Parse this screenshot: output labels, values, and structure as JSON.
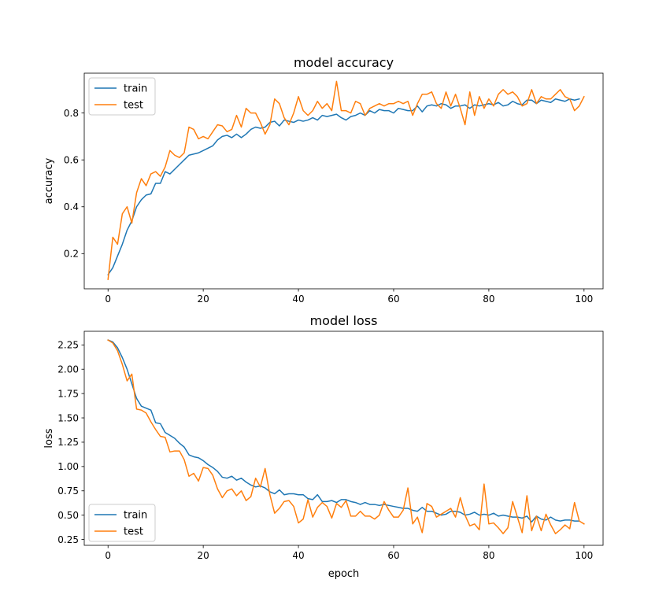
{
  "colors": {
    "train": "#1f77b4",
    "test": "#ff7f0e"
  },
  "chart_data": [
    {
      "type": "line",
      "title": "model accuracy",
      "xlabel": "",
      "ylabel": "accuracy",
      "xlim": [
        -5,
        104
      ],
      "ylim": [
        0.05,
        0.97
      ],
      "xticks": [
        0,
        20,
        40,
        60,
        80,
        100
      ],
      "yticks": [
        0.2,
        0.4,
        0.6,
        0.8
      ],
      "ytick_labels": [
        "0.2",
        "0.4",
        "0.6",
        "0.8"
      ],
      "legend_position": "top-left",
      "grid": false,
      "series": [
        {
          "name": "train",
          "values": [
            0.11,
            0.14,
            0.19,
            0.24,
            0.3,
            0.34,
            0.4,
            0.43,
            0.45,
            0.455,
            0.5,
            0.5,
            0.55,
            0.54,
            0.56,
            0.58,
            0.6,
            0.62,
            0.625,
            0.63,
            0.64,
            0.65,
            0.66,
            0.685,
            0.7,
            0.705,
            0.695,
            0.71,
            0.695,
            0.71,
            0.73,
            0.74,
            0.735,
            0.74,
            0.76,
            0.765,
            0.745,
            0.77,
            0.765,
            0.76,
            0.77,
            0.765,
            0.77,
            0.78,
            0.77,
            0.79,
            0.785,
            0.79,
            0.795,
            0.78,
            0.77,
            0.785,
            0.79,
            0.8,
            0.79,
            0.81,
            0.8,
            0.815,
            0.81,
            0.81,
            0.8,
            0.82,
            0.815,
            0.81,
            0.81,
            0.83,
            0.805,
            0.83,
            0.835,
            0.83,
            0.84,
            0.835,
            0.82,
            0.83,
            0.83,
            0.835,
            0.82,
            0.835,
            0.83,
            0.835,
            0.84,
            0.835,
            0.845,
            0.83,
            0.835,
            0.85,
            0.84,
            0.835,
            0.855,
            0.855,
            0.84,
            0.855,
            0.85,
            0.845,
            0.86,
            0.855,
            0.85,
            0.86,
            0.855,
            0.86
          ]
        },
        {
          "name": "test",
          "values": [
            0.09,
            0.27,
            0.24,
            0.37,
            0.4,
            0.33,
            0.46,
            0.52,
            0.49,
            0.54,
            0.55,
            0.53,
            0.57,
            0.64,
            0.62,
            0.61,
            0.63,
            0.74,
            0.73,
            0.69,
            0.7,
            0.69,
            0.72,
            0.75,
            0.745,
            0.72,
            0.73,
            0.79,
            0.74,
            0.82,
            0.8,
            0.8,
            0.76,
            0.71,
            0.75,
            0.86,
            0.84,
            0.78,
            0.75,
            0.8,
            0.87,
            0.81,
            0.79,
            0.81,
            0.85,
            0.82,
            0.84,
            0.81,
            0.935,
            0.81,
            0.81,
            0.8,
            0.85,
            0.84,
            0.79,
            0.82,
            0.83,
            0.84,
            0.83,
            0.84,
            0.84,
            0.85,
            0.84,
            0.85,
            0.79,
            0.84,
            0.88,
            0.88,
            0.89,
            0.84,
            0.82,
            0.89,
            0.83,
            0.88,
            0.82,
            0.75,
            0.89,
            0.79,
            0.87,
            0.82,
            0.86,
            0.83,
            0.88,
            0.9,
            0.88,
            0.89,
            0.87,
            0.83,
            0.84,
            0.9,
            0.84,
            0.87,
            0.86,
            0.86,
            0.88,
            0.9,
            0.87,
            0.86,
            0.81,
            0.83,
            0.87
          ]
        }
      ]
    },
    {
      "type": "line",
      "title": "model loss",
      "xlabel": "epoch",
      "ylabel": "loss",
      "xlim": [
        -5,
        104
      ],
      "ylim": [
        0.19,
        2.39
      ],
      "xticks": [
        0,
        20,
        40,
        60,
        80,
        100
      ],
      "yticks": [
        0.25,
        0.5,
        0.75,
        1.0,
        1.25,
        1.5,
        1.75,
        2.0,
        2.25
      ],
      "ytick_labels": [
        "0.25",
        "0.50",
        "0.75",
        "1.00",
        "1.25",
        "1.50",
        "1.75",
        "2.00",
        "2.25"
      ],
      "legend_position": "bottom-left",
      "grid": false,
      "series": [
        {
          "name": "train",
          "values": [
            2.3,
            2.28,
            2.22,
            2.12,
            2.0,
            1.85,
            1.7,
            1.62,
            1.6,
            1.58,
            1.45,
            1.44,
            1.35,
            1.32,
            1.29,
            1.24,
            1.2,
            1.12,
            1.1,
            1.09,
            1.06,
            1.02,
            0.99,
            0.95,
            0.89,
            0.88,
            0.9,
            0.86,
            0.88,
            0.84,
            0.81,
            0.79,
            0.8,
            0.78,
            0.74,
            0.72,
            0.76,
            0.71,
            0.72,
            0.72,
            0.71,
            0.71,
            0.67,
            0.66,
            0.71,
            0.64,
            0.64,
            0.65,
            0.63,
            0.66,
            0.66,
            0.64,
            0.63,
            0.61,
            0.63,
            0.61,
            0.61,
            0.6,
            0.61,
            0.6,
            0.59,
            0.58,
            0.57,
            0.57,
            0.55,
            0.54,
            0.58,
            0.54,
            0.54,
            0.52,
            0.5,
            0.51,
            0.54,
            0.54,
            0.53,
            0.5,
            0.51,
            0.53,
            0.5,
            0.51,
            0.5,
            0.52,
            0.49,
            0.5,
            0.49,
            0.48,
            0.48,
            0.47,
            0.49,
            0.43,
            0.49,
            0.46,
            0.45,
            0.48,
            0.45,
            0.44,
            0.45,
            0.45,
            0.44,
            0.44
          ]
        },
        {
          "name": "test",
          "values": [
            2.3,
            2.27,
            2.19,
            2.05,
            1.88,
            1.95,
            1.59,
            1.58,
            1.55,
            1.46,
            1.38,
            1.31,
            1.3,
            1.15,
            1.16,
            1.16,
            1.07,
            0.9,
            0.93,
            0.85,
            0.99,
            0.98,
            0.91,
            0.77,
            0.68,
            0.75,
            0.77,
            0.7,
            0.75,
            0.65,
            0.69,
            0.88,
            0.79,
            0.98,
            0.71,
            0.52,
            0.57,
            0.64,
            0.65,
            0.59,
            0.42,
            0.46,
            0.66,
            0.48,
            0.58,
            0.63,
            0.59,
            0.47,
            0.62,
            0.58,
            0.65,
            0.49,
            0.49,
            0.54,
            0.49,
            0.49,
            0.46,
            0.5,
            0.64,
            0.55,
            0.48,
            0.48,
            0.55,
            0.78,
            0.41,
            0.48,
            0.32,
            0.62,
            0.59,
            0.48,
            0.51,
            0.54,
            0.57,
            0.48,
            0.68,
            0.5,
            0.39,
            0.41,
            0.35,
            0.82,
            0.41,
            0.42,
            0.37,
            0.31,
            0.37,
            0.64,
            0.48,
            0.32,
            0.7,
            0.34,
            0.49,
            0.34,
            0.51,
            0.4,
            0.31,
            0.35,
            0.4,
            0.36,
            0.63,
            0.44,
            0.41
          ]
        }
      ]
    }
  ]
}
